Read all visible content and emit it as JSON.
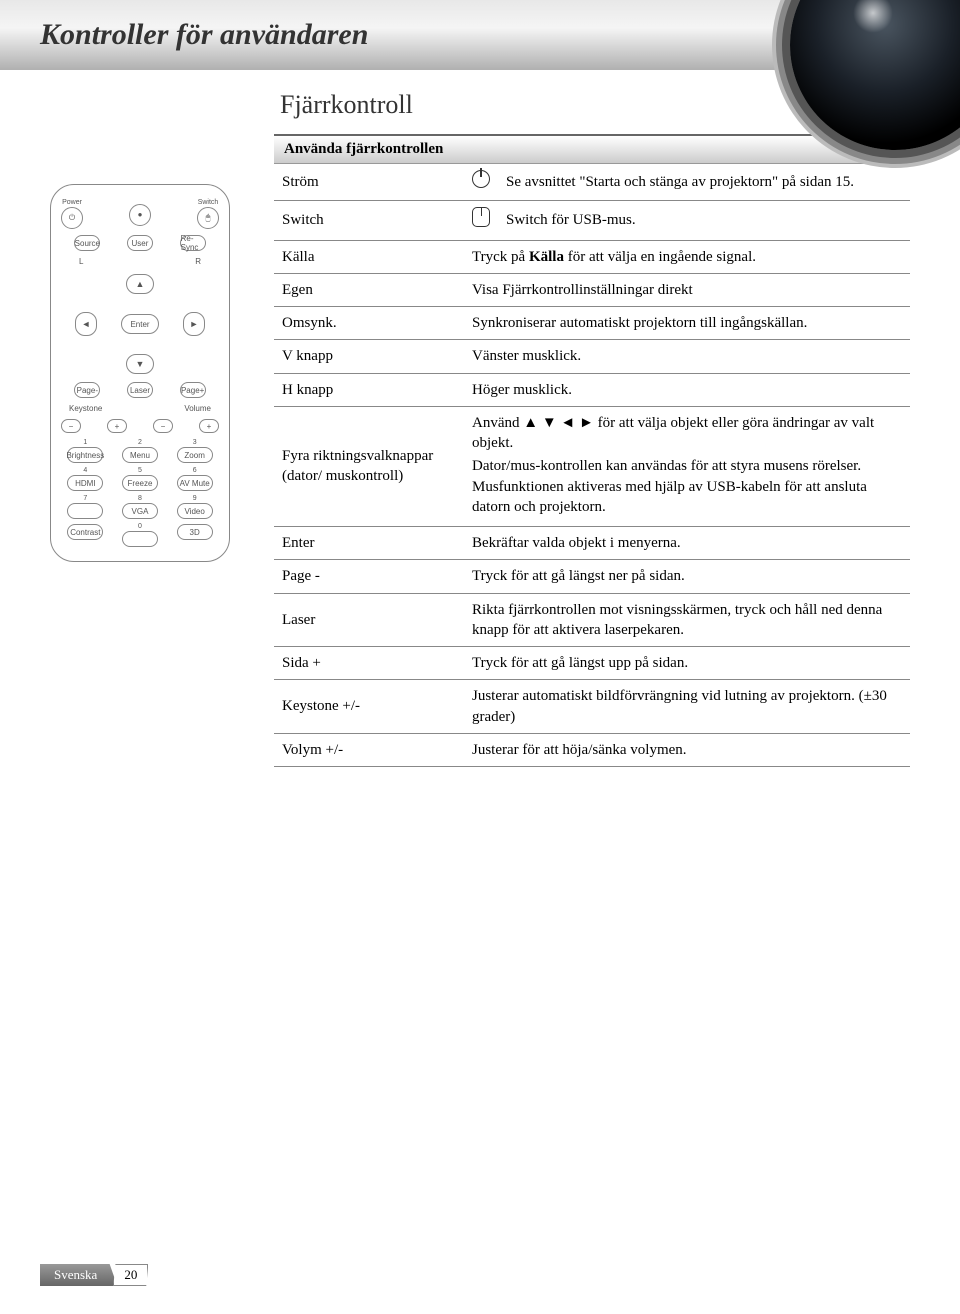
{
  "header": {
    "title": "Kontroller för användaren"
  },
  "section": {
    "title": "Fjärrkontroll"
  },
  "table": {
    "header": "Använda fjärrkontrollen",
    "rows": [
      {
        "label": "Ström",
        "icon": "power",
        "desc": "Se avsnittet \"Starta och stänga av projektorn\" på sidan 15."
      },
      {
        "label": "Switch",
        "icon": "mouse",
        "desc": "Switch för USB-mus."
      },
      {
        "label": "Källa",
        "desc": "Tryck på Källa för att välja en ingående signal.",
        "bold_word": "Källa"
      },
      {
        "label": "Egen",
        "desc": "Visa Fjärrkontrollinställningar direkt"
      },
      {
        "label": "Omsynk.",
        "desc": "Synkroniserar automatiskt projektorn till ingångskällan."
      },
      {
        "label": "V knapp",
        "desc": "Vänster musklick."
      },
      {
        "label": "H knapp",
        "desc": "Höger musklick."
      },
      {
        "label": "Fyra riktningsvalknappar (dator/ muskontroll)",
        "desc_multi": [
          "Använd ▲ ▼ ◄ ► för att välja objekt eller göra ändringar av valt objekt.",
          "Dator/mus-kontrollen kan användas för att styra musens rörelser. Musfunktionen aktiveras med hjälp av USB-kabeln för att ansluta datorn och projektorn."
        ]
      },
      {
        "label": "Enter",
        "desc": "Bekräftar valda objekt i menyerna."
      },
      {
        "label": "Page -",
        "desc": "Tryck för att gå längst ner på sidan."
      },
      {
        "label": "Laser",
        "desc": "Rikta fjärrkontrollen mot visningsskärmen, tryck och håll ned denna knapp för att aktivera laserpekaren."
      },
      {
        "label": "Sida +",
        "desc": "Tryck för att gå längst upp på sidan."
      },
      {
        "label": "Keystone +/-",
        "desc": "Justerar automatiskt bildförvrängning vid lutning av projektorn. (±30 grader)"
      },
      {
        "label": "Volym +/-",
        "desc": "Justerar för att höja/sänka volymen."
      }
    ]
  },
  "remote": {
    "top": [
      {
        "label": "Power",
        "glyph": "⏻"
      },
      {
        "label": "",
        "glyph": "●"
      },
      {
        "label": "Switch",
        "glyph": "🖱"
      }
    ],
    "row2": [
      "Source",
      "User",
      "Re-Sync"
    ],
    "lr": [
      "L",
      "R"
    ],
    "dpad": {
      "enter": "Enter",
      "up": "▲",
      "down": "▼",
      "left": "◄",
      "right": "►"
    },
    "pager": [
      {
        "label": "Page-"
      },
      {
        "label": "Laser"
      },
      {
        "label": "Page+"
      }
    ],
    "slider_labels": [
      "Keystone",
      "Volume"
    ],
    "sliders": [
      "−",
      "+",
      "−",
      "+"
    ],
    "numpad": [
      {
        "n": "1",
        "t": "Brightness"
      },
      {
        "n": "2",
        "t": "Menu"
      },
      {
        "n": "3",
        "t": "Zoom"
      },
      {
        "n": "4",
        "t": "HDMI"
      },
      {
        "n": "5",
        "t": "Freeze"
      },
      {
        "n": "6",
        "t": "AV Mute"
      },
      {
        "n": "7",
        "t": ""
      },
      {
        "n": "8",
        "t": "VGA"
      },
      {
        "n": "9",
        "t": "Video"
      },
      {
        "n": "",
        "t": "Contrast"
      },
      {
        "n": "0",
        "t": ""
      },
      {
        "n": "",
        "t": "3D"
      }
    ]
  },
  "footer": {
    "lang": "Svenska",
    "page": "20"
  }
}
